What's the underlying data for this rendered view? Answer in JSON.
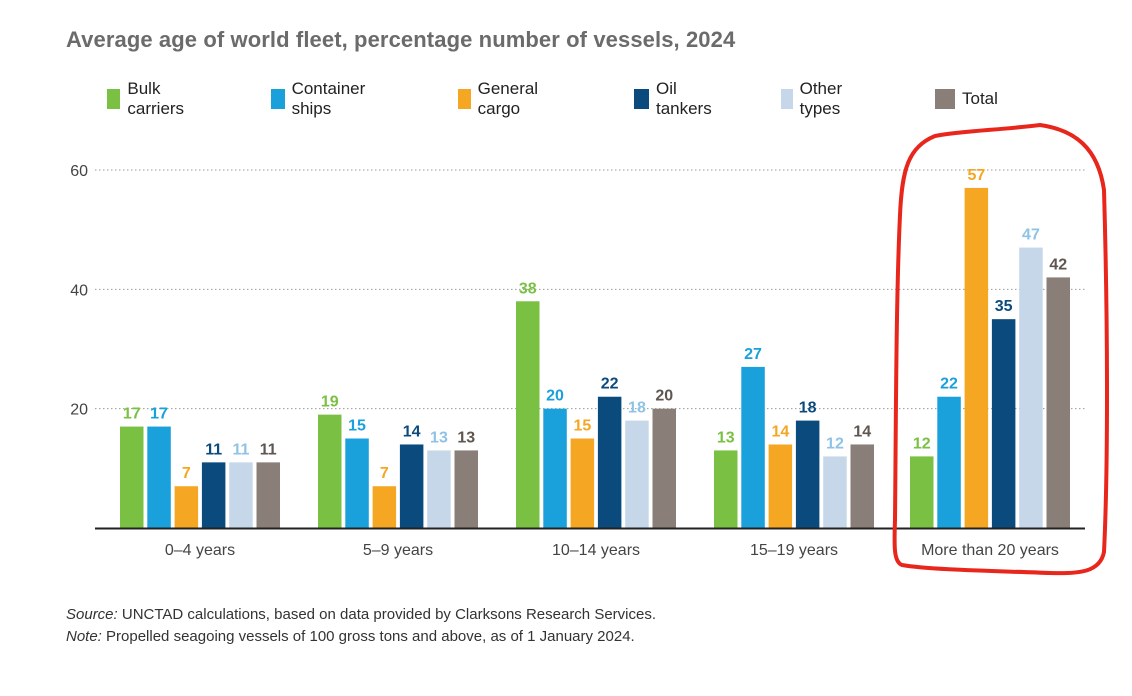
{
  "chart_data": {
    "type": "bar",
    "title": "Average age of world fleet, percentage number of vessels, 2024",
    "categories": [
      "0–4 years",
      "5–9 years",
      "10–14 years",
      "15–19 years",
      "More than 20 years"
    ],
    "series": [
      {
        "name": "Bulk carriers",
        "color": "#7ac143",
        "label_color": "#7ac143",
        "values": [
          17,
          19,
          38,
          13,
          12
        ]
      },
      {
        "name": "Container ships",
        "color": "#1aa1dc",
        "label_color": "#1aa1dc",
        "values": [
          17,
          15,
          20,
          27,
          22
        ]
      },
      {
        "name": "General cargo",
        "color": "#f5a623",
        "label_color": "#f5a623",
        "values": [
          7,
          7,
          15,
          14,
          57
        ]
      },
      {
        "name": "Oil tankers",
        "color": "#0b4a7c",
        "label_color": "#0b4a7c",
        "values": [
          11,
          14,
          22,
          18,
          35
        ]
      },
      {
        "name": "Other types",
        "color": "#c7d7ea",
        "label_color": "#8fc3e6",
        "values": [
          11,
          13,
          18,
          12,
          47
        ]
      },
      {
        "name": "Total",
        "color": "#8a7f78",
        "label_color": "#5e5651",
        "values": [
          11,
          13,
          20,
          14,
          42
        ]
      }
    ],
    "ylim": [
      0,
      60
    ],
    "yticks": [
      20,
      40,
      60
    ],
    "grid": true,
    "legend_position": "top",
    "highlighted_category": "More than 20 years",
    "highlight_color": "#e8261c"
  },
  "footnotes": {
    "source_label": "Source:",
    "source_text": " UNCTAD calculations, based on data provided by Clarksons Research Services.",
    "note_label": "Note:",
    "note_text": " Propelled seagoing vessels of 100 gross tons and above, as of 1 January 2024."
  }
}
